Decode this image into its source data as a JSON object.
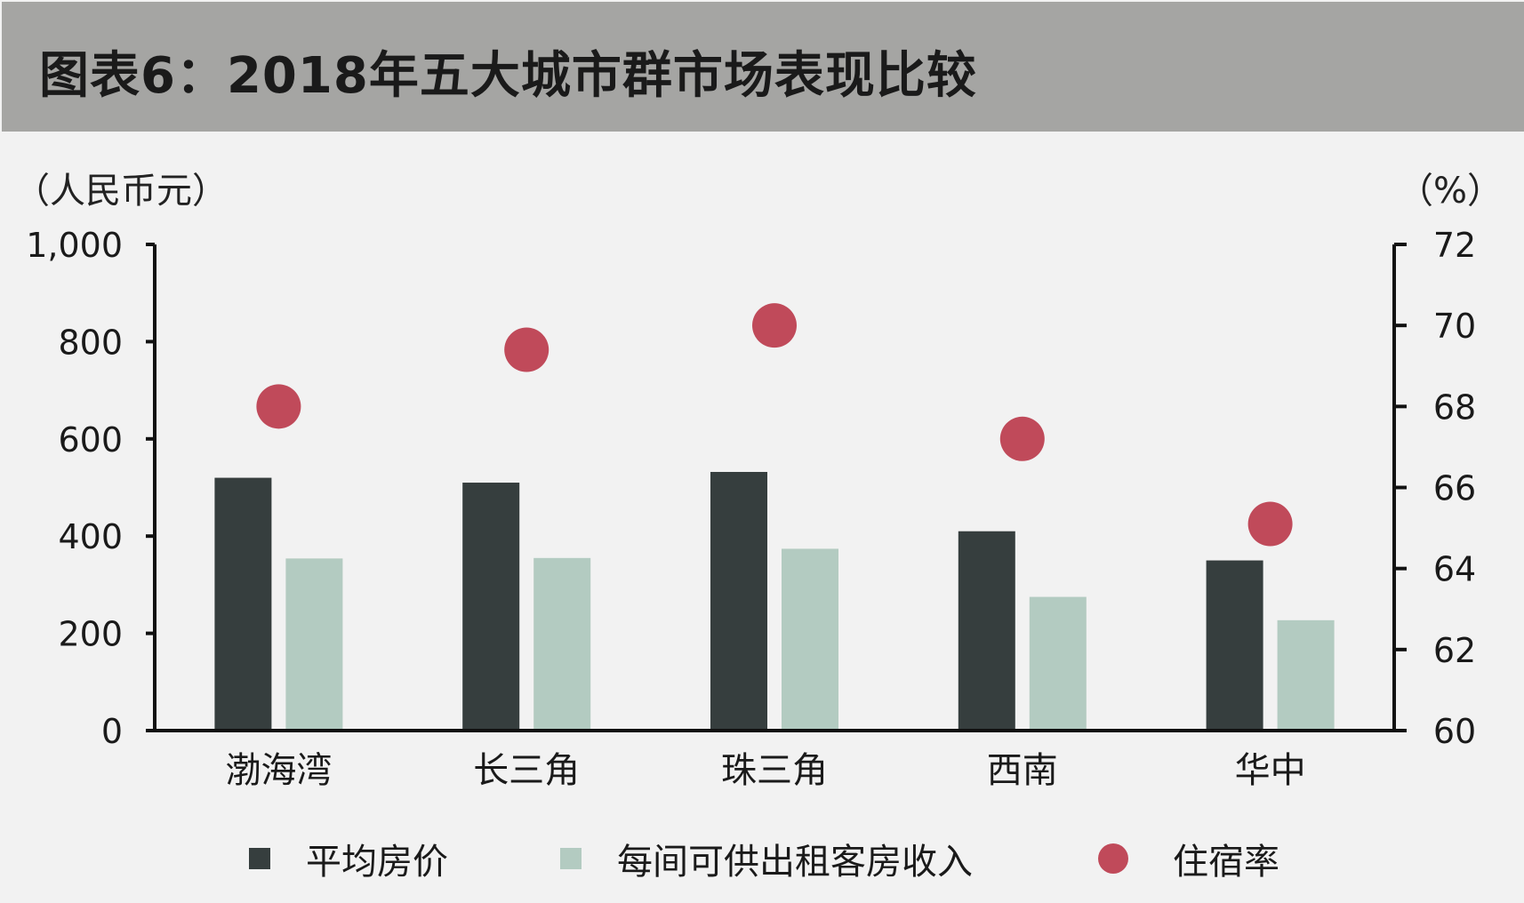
{
  "title": "图表6：2018年五大城市群市场表现比较",
  "left_unit": "（人民币元）",
  "right_unit": "（%）",
  "colors": {
    "price": "#363e3e",
    "revpar": "#b3cbc1",
    "occupancy": "#c04a5a",
    "title_bg": "#a5a5a3",
    "plot_bg": "#f2f2f2"
  },
  "chart_data": {
    "type": "bar",
    "categories": [
      "渤海湾",
      "长三角",
      "珠三角",
      "西南",
      "华中"
    ],
    "series": [
      {
        "name": "平均房价",
        "axis": "left",
        "kind": "bar",
        "values": [
          520,
          510,
          532,
          410,
          350
        ]
      },
      {
        "name": "每间可供出租客房收入",
        "axis": "left",
        "kind": "bar",
        "values": [
          354,
          355,
          374,
          275,
          227
        ]
      },
      {
        "name": "住宿率",
        "axis": "right",
        "kind": "scatter",
        "values": [
          68.0,
          69.4,
          70.0,
          67.2,
          65.1
        ]
      }
    ],
    "left_axis": {
      "ylim": [
        0,
        1000
      ],
      "ticks": [
        0,
        200,
        400,
        600,
        800,
        1000
      ],
      "tick_labels": [
        "0",
        "200",
        "400",
        "600",
        "800",
        "1,000"
      ]
    },
    "right_axis": {
      "ylim": [
        60,
        72
      ],
      "ticks": [
        60,
        62,
        64,
        66,
        68,
        70,
        72
      ],
      "tick_labels": [
        "60",
        "62",
        "64",
        "66",
        "68",
        "70",
        "72"
      ]
    },
    "grid": false,
    "legend": "bottom"
  }
}
